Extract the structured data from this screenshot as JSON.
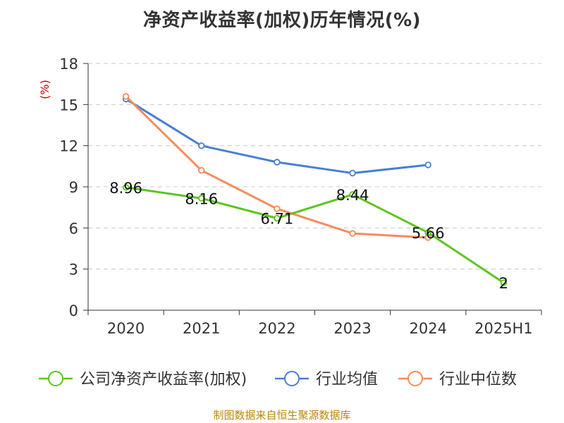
{
  "chart_data": {
    "type": "line",
    "title": "净资产收益率(加权)历年情况(%)",
    "ylabel": "(%)",
    "categories": [
      "2020",
      "2021",
      "2022",
      "2023",
      "2024",
      "2025H1"
    ],
    "ylim": [
      0,
      18
    ],
    "yticks": [
      0,
      3,
      6,
      9,
      12,
      15,
      18
    ],
    "grid": true,
    "legend_position": "bottom",
    "series": [
      {
        "name": "公司净资产收益率(加权)",
        "color": "#5cc41e",
        "values": [
          8.96,
          8.16,
          6.71,
          8.44,
          5.66,
          2
        ],
        "labels": [
          "8.96",
          "8.16",
          "6.71",
          "8.44",
          "5.66",
          "2"
        ]
      },
      {
        "name": "行业均值",
        "color": "#4a7fd4",
        "values": [
          15.4,
          12.0,
          10.8,
          10.0,
          10.6,
          null
        ]
      },
      {
        "name": "行业中位数",
        "color": "#f58c5b",
        "values": [
          15.6,
          10.2,
          7.4,
          5.6,
          5.3,
          null
        ]
      }
    ]
  },
  "footer": {
    "source": "制图数据来自恒生聚源数据库"
  }
}
